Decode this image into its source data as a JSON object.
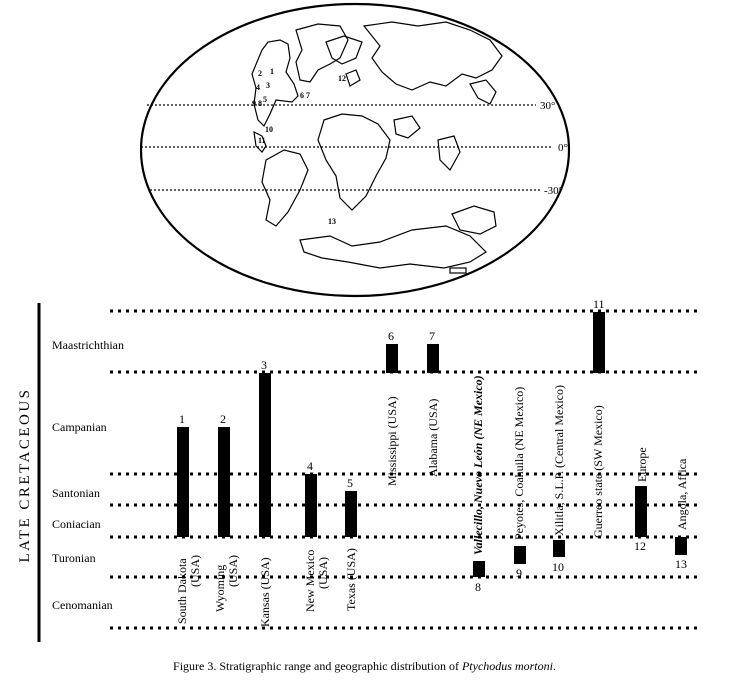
{
  "map": {
    "latitude_labels": [
      "30°",
      "0°",
      "-30°"
    ],
    "locality_labels": [
      {
        "id": "1",
        "text": "1"
      },
      {
        "id": "2",
        "text": "2"
      },
      {
        "id": "3",
        "text": "3"
      },
      {
        "id": "4",
        "text": "4"
      },
      {
        "id": "5",
        "text": "5"
      },
      {
        "id": "6-7",
        "text": "6 7"
      },
      {
        "id": "8",
        "text": "8"
      },
      {
        "id": "9",
        "text": "9"
      },
      {
        "id": "10",
        "text": "10"
      },
      {
        "id": "11",
        "text": "11"
      },
      {
        "id": "12",
        "text": "12"
      },
      {
        "id": "13",
        "text": "13"
      }
    ]
  },
  "chart": {
    "axis_title": "LATE CRETACEOUS",
    "stages": [
      "Maastrichthian",
      "Campanian",
      "Santonian",
      "Coniacian",
      "Turonian",
      "Cenomanian"
    ],
    "ranges": [
      {
        "number": "1",
        "locality": "South Dakota (USA)",
        "lines": [
          "South Dakota",
          "(USA)"
        ],
        "from": "Coniacian",
        "to": "Campanian",
        "bold_italic": false
      },
      {
        "number": "2",
        "locality": "Wyoming (USA)",
        "lines": [
          "Wyoming",
          "(USA)"
        ],
        "from": "Coniacian",
        "to": "Campanian",
        "bold_italic": false
      },
      {
        "number": "3",
        "locality": "Kansas (USA)",
        "lines": [
          "Kansas (USA)"
        ],
        "from": "Coniacian",
        "to": "Campanian",
        "bold_italic": false
      },
      {
        "number": "4",
        "locality": "New Mexico (USA)",
        "lines": [
          "New Mexico",
          "(USA)"
        ],
        "from": "Coniacian",
        "to": "Santonian",
        "bold_italic": false
      },
      {
        "number": "5",
        "locality": "Texas (USA)",
        "lines": [
          "Texas (USA)"
        ],
        "from": "Coniacian",
        "to": "Santonian",
        "bold_italic": false
      },
      {
        "number": "6",
        "locality": "Mississippi (USA)",
        "lines": [
          "Mississippi (USA)"
        ],
        "from": "Maastrichthian",
        "to": "Maastrichthian",
        "bold_italic": false
      },
      {
        "number": "7",
        "locality": "Alabama (USA)",
        "lines": [
          "Alabama (USA)"
        ],
        "from": "Maastrichthian",
        "to": "Maastrichthian",
        "bold_italic": false
      },
      {
        "number": "8",
        "locality": "Vallecillo, Nuevo León (NE Mexico)",
        "lines": [
          "Vallecillo, Nuevo León (NE Mexico)"
        ],
        "from": "Turonian",
        "to": "Turonian",
        "bold_italic": true
      },
      {
        "number": "9",
        "locality": "Peyotes, Coahuila (NE Mexico)",
        "lines": [
          "Peyotes, Coahuila (NE Mexico)"
        ],
        "from": "Turonian",
        "to": "Turonian",
        "bold_italic": false
      },
      {
        "number": "10",
        "locality": "Xilitla, S.L.P. (Central Mexico)",
        "lines": [
          "Xilitla, S.L.P. (Central Mexico)"
        ],
        "from": "Turonian",
        "to": "Turonian",
        "bold_italic": false
      },
      {
        "number": "11",
        "locality": "Guerreo state (SW Mexico)",
        "lines": [
          "Guerreo state (SW Mexico)"
        ],
        "from": "Maastrichthian",
        "to": "Maastrichthian",
        "bold_italic": false
      },
      {
        "number": "12",
        "locality": "Europe",
        "lines": [
          "Europe"
        ],
        "from": "Coniacian",
        "to": "Santonian",
        "bold_italic": false
      },
      {
        "number": "13",
        "locality": "Angola, Africa",
        "lines": [
          "Angola, Africa"
        ],
        "from": "Turonian",
        "to": "Turonian",
        "bold_italic": false
      }
    ]
  },
  "caption": {
    "prefix": "Figure 3. Stratigraphic range and geographic distribution of ",
    "species": "Ptychodus mortoni",
    "suffix": "."
  }
}
